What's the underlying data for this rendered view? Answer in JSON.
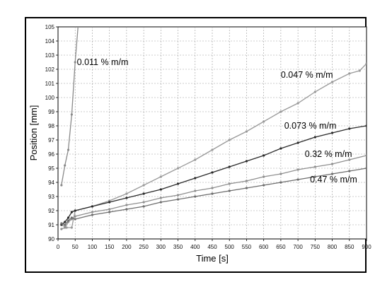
{
  "chart_data": {
    "type": "line",
    "xlabel": "Time [s]",
    "ylabel": "Position [mm]",
    "xlim": [
      0,
      900
    ],
    "ylim": [
      90,
      105
    ],
    "xticks": [
      0,
      50,
      100,
      150,
      200,
      250,
      300,
      350,
      400,
      450,
      500,
      550,
      600,
      650,
      700,
      750,
      800,
      850,
      900
    ],
    "yticks": [
      90,
      91,
      92,
      93,
      94,
      95,
      96,
      97,
      98,
      99,
      100,
      101,
      102,
      103,
      104,
      105
    ],
    "grid": true,
    "series": [
      {
        "name": "0.011 % m/m",
        "color": "#8a8a8a",
        "x": [
          10,
          20,
          30,
          40,
          50,
          60
        ],
        "y": [
          93.8,
          95.2,
          96.3,
          98.8,
          102.5,
          105.5
        ]
      },
      {
        "name": "0.047 % m/m",
        "color": "#9a9a9a",
        "x": [
          10,
          25,
          40,
          50,
          100,
          150,
          200,
          250,
          300,
          350,
          400,
          450,
          500,
          550,
          600,
          650,
          700,
          750,
          800,
          850,
          880,
          900
        ],
        "y": [
          91.0,
          90.8,
          90.8,
          92.0,
          92.3,
          92.7,
          93.2,
          93.8,
          94.4,
          95.0,
          95.6,
          96.3,
          97.0,
          97.6,
          98.3,
          99.0,
          99.6,
          100.4,
          101.1,
          101.7,
          101.9,
          102.4
        ]
      },
      {
        "name": "0.073 % m/m",
        "color": "#2a2a2a",
        "x": [
          10,
          20,
          30,
          40,
          50,
          100,
          150,
          200,
          250,
          300,
          350,
          400,
          450,
          500,
          550,
          600,
          650,
          700,
          750,
          800,
          850,
          900
        ],
        "y": [
          91.0,
          91.2,
          91.5,
          91.9,
          92.0,
          92.3,
          92.6,
          92.9,
          93.2,
          93.5,
          93.9,
          94.3,
          94.7,
          95.1,
          95.5,
          95.9,
          96.4,
          96.8,
          97.2,
          97.5,
          97.8,
          98.0
        ]
      },
      {
        "name": "0.32 % m/m",
        "color": "#909090",
        "x": [
          10,
          20,
          30,
          40,
          50,
          100,
          150,
          200,
          250,
          300,
          350,
          400,
          450,
          500,
          550,
          600,
          650,
          700,
          750,
          800,
          850,
          900
        ],
        "y": [
          90.7,
          90.8,
          91.2,
          91.4,
          91.6,
          91.9,
          92.1,
          92.4,
          92.6,
          92.9,
          93.1,
          93.4,
          93.6,
          93.9,
          94.1,
          94.4,
          94.6,
          94.9,
          95.1,
          95.3,
          95.6,
          95.9
        ]
      },
      {
        "name": "0.47 % m/m",
        "color": "#6e6e6e",
        "x": [
          10,
          20,
          30,
          40,
          50,
          100,
          150,
          200,
          250,
          300,
          350,
          400,
          450,
          500,
          550,
          600,
          650,
          700,
          750,
          800,
          850,
          900
        ],
        "y": [
          91.1,
          91.0,
          91.3,
          91.5,
          91.4,
          91.7,
          91.9,
          92.1,
          92.3,
          92.6,
          92.8,
          93.0,
          93.2,
          93.4,
          93.6,
          93.8,
          94.0,
          94.2,
          94.4,
          94.6,
          94.8,
          95.0
        ]
      }
    ],
    "annotations": [
      {
        "text": "0.011 % m/m",
        "series": 0,
        "x": 55,
        "y": 102.5
      },
      {
        "text": "0.047 % m/m",
        "series": 1,
        "x": 650,
        "y": 101.6
      },
      {
        "text": "0.073 % m/m",
        "series": 2,
        "x": 660,
        "y": 98.0
      },
      {
        "text": "0.32 % m/m",
        "series": 3,
        "x": 720,
        "y": 96.0
      },
      {
        "text": "0.47 % m/m",
        "series": 4,
        "x": 735,
        "y": 94.2
      }
    ]
  }
}
